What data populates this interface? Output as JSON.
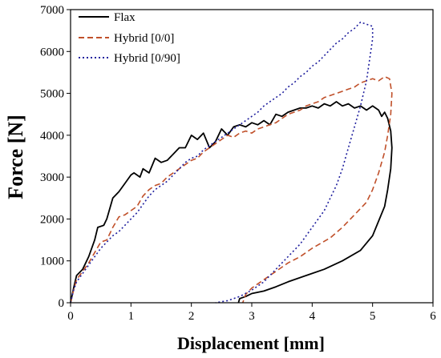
{
  "chart_data": {
    "type": "line",
    "title": "",
    "xlabel": "Displacement [mm]",
    "ylabel": "Force [N]",
    "xlim": [
      0,
      6
    ],
    "ylim": [
      0,
      7000
    ],
    "xticks": [
      "0",
      "1",
      "2",
      "3",
      "4",
      "5",
      "6"
    ],
    "yticks": [
      "0",
      "1000",
      "2000",
      "3000",
      "4000",
      "5000",
      "6000",
      "7000"
    ],
    "grid": false,
    "legend_position": "top-left",
    "series": [
      {
        "name": "Flax",
        "color": "#000000",
        "dash": "solid",
        "points": [
          [
            0,
            0
          ],
          [
            0.05,
            350
          ],
          [
            0.1,
            650
          ],
          [
            0.2,
            800
          ],
          [
            0.3,
            1100
          ],
          [
            0.4,
            1500
          ],
          [
            0.45,
            1800
          ],
          [
            0.55,
            1850
          ],
          [
            0.6,
            2000
          ],
          [
            0.7,
            2500
          ],
          [
            0.8,
            2650
          ],
          [
            0.9,
            2850
          ],
          [
            1.0,
            3050
          ],
          [
            1.05,
            3100
          ],
          [
            1.15,
            3000
          ],
          [
            1.2,
            3200
          ],
          [
            1.3,
            3100
          ],
          [
            1.4,
            3450
          ],
          [
            1.5,
            3350
          ],
          [
            1.6,
            3400
          ],
          [
            1.7,
            3550
          ],
          [
            1.8,
            3700
          ],
          [
            1.9,
            3700
          ],
          [
            2.0,
            4000
          ],
          [
            2.1,
            3900
          ],
          [
            2.2,
            4050
          ],
          [
            2.3,
            3700
          ],
          [
            2.4,
            3850
          ],
          [
            2.5,
            4150
          ],
          [
            2.6,
            4000
          ],
          [
            2.7,
            4200
          ],
          [
            2.8,
            4250
          ],
          [
            2.9,
            4200
          ],
          [
            3.0,
            4300
          ],
          [
            3.1,
            4250
          ],
          [
            3.2,
            4350
          ],
          [
            3.3,
            4250
          ],
          [
            3.4,
            4500
          ],
          [
            3.5,
            4450
          ],
          [
            3.6,
            4550
          ],
          [
            3.7,
            4600
          ],
          [
            3.8,
            4650
          ],
          [
            3.9,
            4650
          ],
          [
            4.0,
            4700
          ],
          [
            4.1,
            4650
          ],
          [
            4.2,
            4750
          ],
          [
            4.3,
            4700
          ],
          [
            4.4,
            4800
          ],
          [
            4.5,
            4700
          ],
          [
            4.6,
            4750
          ],
          [
            4.7,
            4650
          ],
          [
            4.8,
            4700
          ],
          [
            4.9,
            4600
          ],
          [
            5.0,
            4700
          ],
          [
            5.1,
            4600
          ],
          [
            5.15,
            4450
          ],
          [
            5.2,
            4550
          ],
          [
            5.25,
            4400
          ],
          [
            5.3,
            4100
          ],
          [
            5.32,
            3700
          ],
          [
            5.3,
            3200
          ],
          [
            5.25,
            2700
          ],
          [
            5.2,
            2300
          ],
          [
            5.1,
            1950
          ],
          [
            5.0,
            1600
          ],
          [
            4.8,
            1250
          ],
          [
            4.5,
            1000
          ],
          [
            4.2,
            800
          ],
          [
            3.9,
            650
          ],
          [
            3.6,
            500
          ],
          [
            3.4,
            380
          ],
          [
            3.2,
            280
          ],
          [
            3.0,
            220
          ],
          [
            2.9,
            150
          ],
          [
            2.8,
            100
          ],
          [
            2.78,
            0
          ]
        ]
      },
      {
        "name": "Hybrid [0/0]",
        "color": "#c0502a",
        "dash": "dashed",
        "points": [
          [
            0,
            0
          ],
          [
            0.05,
            300
          ],
          [
            0.1,
            550
          ],
          [
            0.2,
            750
          ],
          [
            0.3,
            950
          ],
          [
            0.4,
            1200
          ],
          [
            0.5,
            1450
          ],
          [
            0.6,
            1500
          ],
          [
            0.7,
            1800
          ],
          [
            0.8,
            2050
          ],
          [
            0.9,
            2100
          ],
          [
            1.0,
            2200
          ],
          [
            1.1,
            2300
          ],
          [
            1.2,
            2550
          ],
          [
            1.3,
            2700
          ],
          [
            1.4,
            2800
          ],
          [
            1.5,
            2850
          ],
          [
            1.6,
            3000
          ],
          [
            1.7,
            3100
          ],
          [
            1.8,
            3200
          ],
          [
            1.9,
            3300
          ],
          [
            2.0,
            3400
          ],
          [
            2.1,
            3450
          ],
          [
            2.2,
            3600
          ],
          [
            2.3,
            3700
          ],
          [
            2.4,
            3800
          ],
          [
            2.5,
            3900
          ],
          [
            2.6,
            4000
          ],
          [
            2.7,
            3950
          ],
          [
            2.8,
            4050
          ],
          [
            2.9,
            4100
          ],
          [
            3.0,
            4050
          ],
          [
            3.1,
            4150
          ],
          [
            3.2,
            4200
          ],
          [
            3.3,
            4250
          ],
          [
            3.4,
            4300
          ],
          [
            3.5,
            4400
          ],
          [
            3.6,
            4500
          ],
          [
            3.7,
            4550
          ],
          [
            3.8,
            4600
          ],
          [
            3.9,
            4700
          ],
          [
            4.0,
            4750
          ],
          [
            4.1,
            4800
          ],
          [
            4.2,
            4900
          ],
          [
            4.3,
            4950
          ],
          [
            4.4,
            5000
          ],
          [
            4.5,
            5050
          ],
          [
            4.6,
            5100
          ],
          [
            4.7,
            5150
          ],
          [
            4.8,
            5250
          ],
          [
            4.9,
            5300
          ],
          [
            5.0,
            5350
          ],
          [
            5.1,
            5300
          ],
          [
            5.2,
            5400
          ],
          [
            5.28,
            5350
          ],
          [
            5.32,
            5000
          ],
          [
            5.3,
            4500
          ],
          [
            5.25,
            4000
          ],
          [
            5.2,
            3600
          ],
          [
            5.1,
            3100
          ],
          [
            5.0,
            2700
          ],
          [
            4.9,
            2400
          ],
          [
            4.7,
            2100
          ],
          [
            4.5,
            1800
          ],
          [
            4.3,
            1550
          ],
          [
            4.0,
            1300
          ],
          [
            3.8,
            1100
          ],
          [
            3.6,
            950
          ],
          [
            3.4,
            750
          ],
          [
            3.2,
            550
          ],
          [
            3.0,
            350
          ],
          [
            2.9,
            200
          ],
          [
            2.85,
            0
          ]
        ]
      },
      {
        "name": "Hybrid [0/90]",
        "color": "#1f1f9e",
        "dash": "dotted",
        "points": [
          [
            0,
            0
          ],
          [
            0.05,
            300
          ],
          [
            0.1,
            500
          ],
          [
            0.2,
            700
          ],
          [
            0.3,
            900
          ],
          [
            0.4,
            1100
          ],
          [
            0.5,
            1300
          ],
          [
            0.6,
            1450
          ],
          [
            0.7,
            1600
          ],
          [
            0.8,
            1700
          ],
          [
            0.9,
            1850
          ],
          [
            1.0,
            2000
          ],
          [
            1.1,
            2150
          ],
          [
            1.2,
            2350
          ],
          [
            1.3,
            2550
          ],
          [
            1.4,
            2700
          ],
          [
            1.5,
            2800
          ],
          [
            1.6,
            2900
          ],
          [
            1.7,
            3050
          ],
          [
            1.8,
            3200
          ],
          [
            1.9,
            3350
          ],
          [
            2.0,
            3450
          ],
          [
            2.1,
            3500
          ],
          [
            2.2,
            3650
          ],
          [
            2.3,
            3750
          ],
          [
            2.4,
            3850
          ],
          [
            2.5,
            3950
          ],
          [
            2.6,
            4050
          ],
          [
            2.7,
            4150
          ],
          [
            2.8,
            4250
          ],
          [
            2.9,
            4350
          ],
          [
            3.0,
            4450
          ],
          [
            3.1,
            4550
          ],
          [
            3.2,
            4700
          ],
          [
            3.3,
            4800
          ],
          [
            3.4,
            4900
          ],
          [
            3.5,
            5000
          ],
          [
            3.6,
            5150
          ],
          [
            3.7,
            5250
          ],
          [
            3.8,
            5400
          ],
          [
            3.9,
            5500
          ],
          [
            4.0,
            5650
          ],
          [
            4.1,
            5750
          ],
          [
            4.2,
            5900
          ],
          [
            4.3,
            6050
          ],
          [
            4.4,
            6200
          ],
          [
            4.5,
            6300
          ],
          [
            4.6,
            6450
          ],
          [
            4.7,
            6550
          ],
          [
            4.8,
            6700
          ],
          [
            4.9,
            6650
          ],
          [
            5.0,
            6600
          ],
          [
            5.0,
            6300
          ],
          [
            4.95,
            5800
          ],
          [
            4.9,
            5300
          ],
          [
            4.8,
            4700
          ],
          [
            4.7,
            4200
          ],
          [
            4.6,
            3700
          ],
          [
            4.5,
            3200
          ],
          [
            4.4,
            2800
          ],
          [
            4.3,
            2500
          ],
          [
            4.2,
            2200
          ],
          [
            4.0,
            1800
          ],
          [
            3.8,
            1400
          ],
          [
            3.6,
            1100
          ],
          [
            3.4,
            800
          ],
          [
            3.2,
            500
          ],
          [
            3.0,
            300
          ],
          [
            2.8,
            150
          ],
          [
            2.6,
            50
          ],
          [
            2.4,
            0
          ]
        ]
      }
    ]
  }
}
